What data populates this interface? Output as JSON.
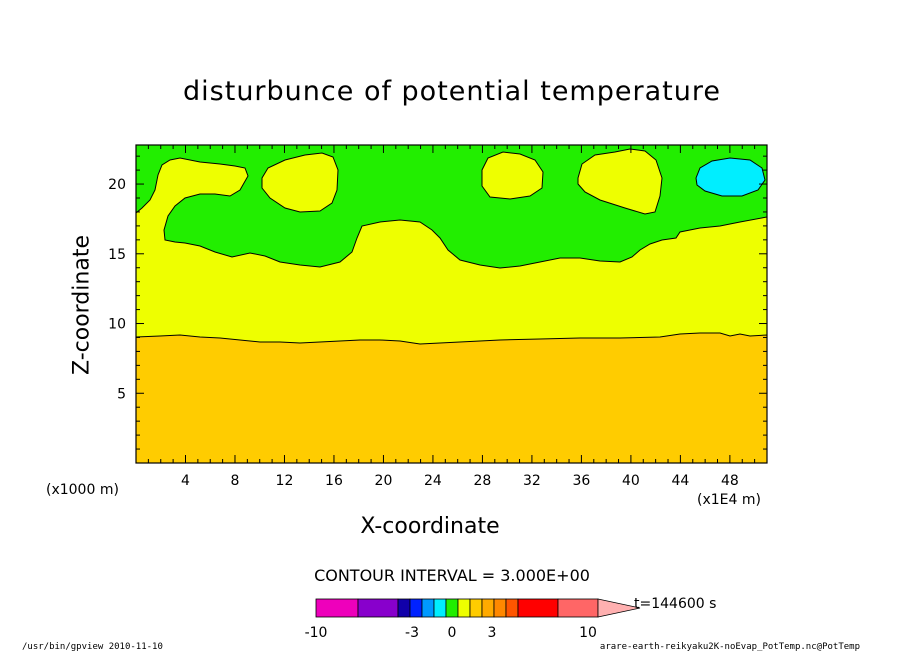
{
  "chart_data": {
    "type": "contour",
    "title": "disturbunce of potential temperature",
    "xlabel": "X-coordinate",
    "ylabel": "Z-coordinate",
    "x_unit_left": "(x1000 m)",
    "x_unit_right": "(x1E4 m)",
    "xlim": [
      0,
      51
    ],
    "ylim": [
      0,
      22.8
    ],
    "x_ticks": [
      4,
      8,
      12,
      16,
      20,
      24,
      28,
      32,
      36,
      40,
      44,
      48
    ],
    "x_tick_labels": [
      "4",
      "8",
      "12",
      "16",
      "20",
      "24",
      "28",
      "32",
      "36",
      "40",
      "44",
      "48"
    ],
    "y_ticks": [
      5,
      10,
      15,
      20
    ],
    "y_tick_labels": [
      "5",
      "10",
      "15",
      "20"
    ],
    "contour_interval": "CONTOUR INTERVAL = 3.000E+00",
    "time": "t=144600 s",
    "regions": [
      {
        "level": "orange (lower layer)",
        "color": "#ffcc00",
        "boundary_z": [
          9.2,
          9.3,
          9.2,
          9.1,
          9.0,
          8.8,
          8.8,
          9.0,
          9.0,
          8.8,
          8.8,
          8.9,
          9.0,
          9.1,
          9.1,
          9.2,
          9.5,
          9.3,
          9.3
        ],
        "boundary_x": [
          0,
          2,
          4,
          6,
          8,
          10,
          12,
          14,
          16,
          18,
          20,
          22,
          26,
          30,
          34,
          38,
          44,
          48,
          51
        ]
      },
      {
        "level": "yellow (middle layer)",
        "color": "#eeff00"
      },
      {
        "level": "green (upper layer)",
        "color": "#22ee00"
      },
      {
        "level": "cyan cell",
        "color": "#00eeff",
        "center_x": 47.8,
        "center_z": 20.7
      }
    ],
    "colorbar": {
      "colors": [
        "#ee00bb",
        "#8800cc",
        "#1100aa",
        "#0022ff",
        "#0099ff",
        "#00eeff",
        "#22ee00",
        "#eeff00",
        "#ffcc00",
        "#ffaa00",
        "#ff8800",
        "#ff5500",
        "#ff0000",
        "#ff6666",
        "#ffb0b0"
      ],
      "tick_labels": [
        "-10",
        "-3",
        "0",
        "3",
        "10"
      ]
    }
  },
  "footer": {
    "left": "/usr/bin/gpview  2010-11-10",
    "right": "arare-earth-reikyaku2K-noEvap_PotTemp.nc@PotTemp"
  }
}
